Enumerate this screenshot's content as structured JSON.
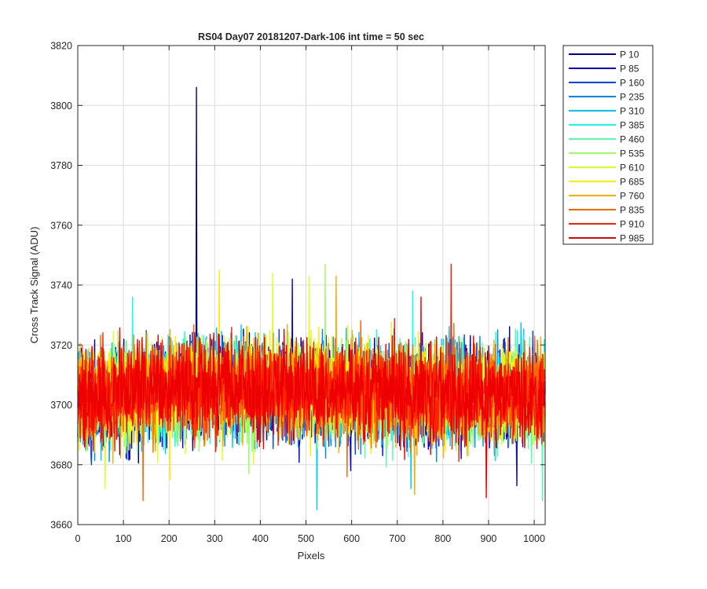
{
  "chart_data": {
    "type": "line",
    "title": "RS04 Day07 20181207-Dark-106 int time = 50 sec",
    "xlabel": "Pixels",
    "ylabel": "Cross Track Signal (ADU)",
    "xlim": [
      0,
      1024
    ],
    "ylim": [
      3660,
      3820
    ],
    "xticks": [
      0,
      100,
      200,
      300,
      400,
      500,
      600,
      700,
      800,
      900,
      1000
    ],
    "yticks": [
      3660,
      3680,
      3700,
      3720,
      3740,
      3760,
      3780,
      3800,
      3820
    ],
    "grid": true,
    "legend_position": "outside-top-right",
    "series": [
      {
        "name": "P 10",
        "color": "#00008F",
        "mean": 3705,
        "spread": 8,
        "seed": 11,
        "spikes": [
          [
            260,
            3806
          ],
          [
            262,
            3712
          ]
        ]
      },
      {
        "name": "P 85",
        "color": "#0000DD",
        "mean": 3705,
        "spread": 8,
        "seed": 23,
        "spikes": [
          [
            470,
            3742
          ],
          [
            962,
            3673
          ],
          [
            598,
            3678
          ]
        ]
      },
      {
        "name": "P 160",
        "color": "#0044FF",
        "mean": 3706,
        "spread": 8,
        "seed": 37,
        "spikes": [
          [
            30,
            3680
          ]
        ]
      },
      {
        "name": "P 235",
        "color": "#0088FF",
        "mean": 3705,
        "spread": 8,
        "seed": 41,
        "spikes": [
          [
            108,
            3682
          ]
        ]
      },
      {
        "name": "P 310",
        "color": "#00C8FF",
        "mean": 3706,
        "spread": 8,
        "seed": 53,
        "spikes": [
          [
            4,
            3718
          ],
          [
            524,
            3665
          ],
          [
            730,
            3672
          ]
        ]
      },
      {
        "name": "P 385",
        "color": "#11FFEE",
        "mean": 3706,
        "spread": 8,
        "seed": 67,
        "spikes": [
          [
            120,
            3736
          ],
          [
            734,
            3738
          ]
        ]
      },
      {
        "name": "P 460",
        "color": "#55FFAA",
        "mean": 3705,
        "spread": 8,
        "seed": 79,
        "spikes": [
          [
            1018,
            3668
          ]
        ]
      },
      {
        "name": "P 535",
        "color": "#99FF66",
        "mean": 3706,
        "spread": 8,
        "seed": 83,
        "spikes": [
          [
            542,
            3747
          ],
          [
            375,
            3677
          ]
        ]
      },
      {
        "name": "P 610",
        "color": "#DDFF22",
        "mean": 3706,
        "spread": 8,
        "seed": 97,
        "spikes": [
          [
            507,
            3743
          ],
          [
            427,
            3744
          ],
          [
            60,
            3672
          ]
        ]
      },
      {
        "name": "P 685",
        "color": "#FFEE00",
        "mean": 3706,
        "spread": 8,
        "seed": 101,
        "spikes": [
          [
            310,
            3745
          ],
          [
            202,
            3675
          ]
        ]
      },
      {
        "name": "P 760",
        "color": "#FFAA00",
        "mean": 3706,
        "spread": 8,
        "seed": 113,
        "spikes": [
          [
            566,
            3743
          ],
          [
            738,
            3670
          ]
        ]
      },
      {
        "name": "P 835",
        "color": "#FF6600",
        "mean": 3706,
        "spread": 8,
        "seed": 127,
        "spikes": [
          [
            143,
            3668
          ],
          [
            590,
            3676
          ]
        ]
      },
      {
        "name": "P 910",
        "color": "#FF2200",
        "mean": 3706,
        "spread": 8,
        "seed": 131,
        "spikes": [
          [
            818,
            3747
          ]
        ]
      },
      {
        "name": "P 985",
        "color": "#EE0000",
        "mean": 3706,
        "spread": 8,
        "seed": 139,
        "spikes": [
          [
            895,
            3669
          ],
          [
            752,
            3736
          ]
        ]
      }
    ]
  }
}
